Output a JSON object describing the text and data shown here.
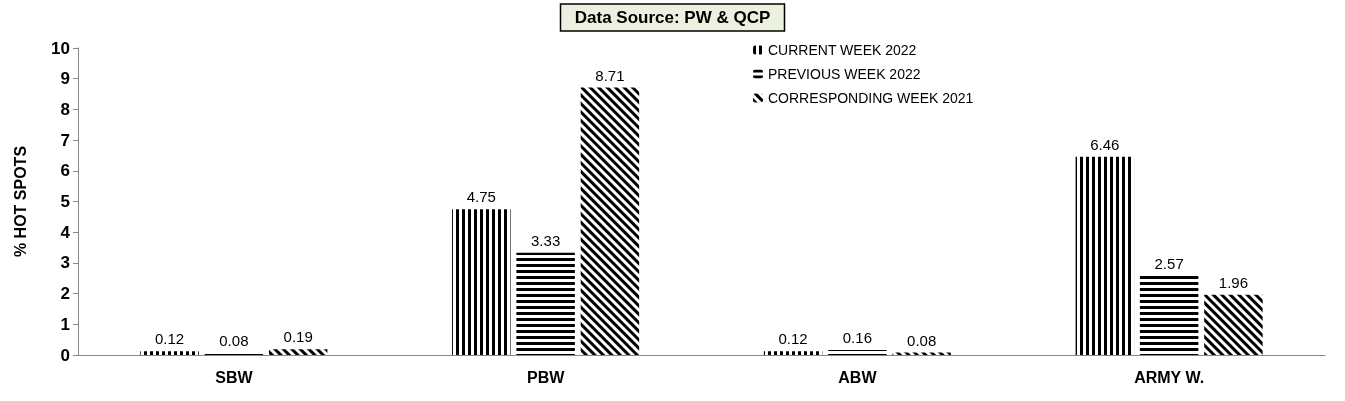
{
  "chart_data": {
    "type": "bar",
    "title": "Data Source: PW & QCP",
    "ylabel": "% HOT SPOTS",
    "categories": [
      "SBW",
      "PBW",
      "ABW",
      "ARMY W."
    ],
    "series": [
      {
        "name": "CURRENT WEEK 2022",
        "color": "#000000",
        "values": [
          0.12,
          4.75,
          0.12,
          6.46
        ]
      },
      {
        "name": "PREVIOUS WEEK 2022",
        "color": "#000000",
        "values": [
          0.08,
          3.33,
          0.16,
          2.57
        ]
      },
      {
        "name": "CORRESPONDING WEEK 2021",
        "color": "#000000",
        "values": [
          0.19,
          8.71,
          0.08,
          1.96
        ]
      }
    ],
    "ylim": [
      0,
      10
    ],
    "yticks": [
      0,
      1,
      2,
      3,
      4,
      5,
      6,
      7,
      8,
      9,
      10
    ],
    "data_labels": true,
    "legend": "top right"
  }
}
